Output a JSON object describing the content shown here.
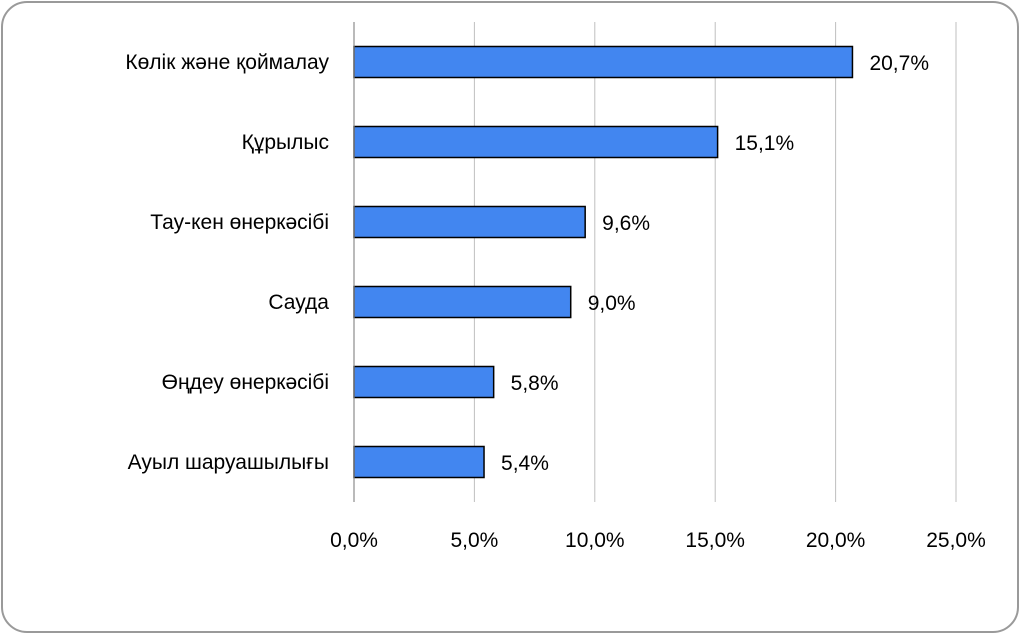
{
  "chart_data": {
    "type": "bar",
    "orientation": "horizontal",
    "categories": [
      "Көлік және қоймалау",
      "Құрылыс",
      "Тау-кен өнеркәсібі",
      "Сауда",
      "Өңдеу өнеркәсібі",
      "Ауыл шаруашылығы"
    ],
    "values": [
      20.7,
      15.1,
      9.6,
      9.0,
      5.8,
      5.4
    ],
    "value_labels": [
      "20,7%",
      "15,1%",
      "9,6%",
      "9,0%",
      "5,8%",
      "5,4%"
    ],
    "xlim": [
      0,
      25
    ],
    "xticks": [
      0,
      5,
      10,
      15,
      20,
      25
    ],
    "xtick_labels": [
      "0,0%",
      "5,0%",
      "10,0%",
      "15,0%",
      "20,0%",
      "25,0%"
    ],
    "grid": "vertical",
    "legend": "none",
    "colors": {
      "bar": "#4286f0",
      "bar_edge": "#000000",
      "grid": "#bfbfbf",
      "frame": "#9a9a9a"
    }
  }
}
